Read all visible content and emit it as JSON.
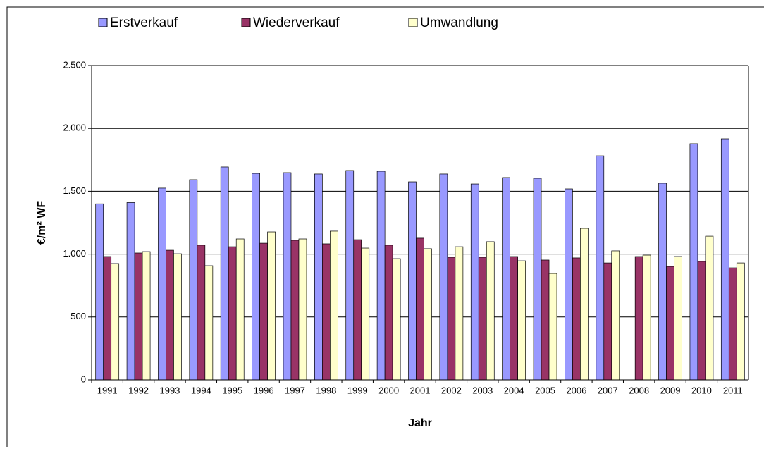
{
  "chart_data": {
    "type": "bar",
    "x_label": "Jahr",
    "y_label": "€/m² WF",
    "categories": [
      "1991",
      "1992",
      "1993",
      "1994",
      "1995",
      "1996",
      "1997",
      "1998",
      "1999",
      "2000",
      "2001",
      "2002",
      "2003",
      "2004",
      "2005",
      "2006",
      "2007",
      "2008",
      "2009",
      "2010",
      "2011"
    ],
    "series": [
      {
        "name": "Erstverkauf",
        "color": "#9999ff",
        "values": [
          1400,
          1410,
          1525,
          1592,
          1693,
          1642,
          1648,
          1637,
          1665,
          1659,
          1575,
          1637,
          1558,
          1609,
          1603,
          1519,
          1782,
          null,
          1564,
          1878,
          1917
        ]
      },
      {
        "name": "Wiederverkauf",
        "color": "#993366",
        "values": [
          981,
          1009,
          1031,
          1071,
          1059,
          1087,
          1110,
          1082,
          1115,
          1071,
          1127,
          975,
          975,
          981,
          953,
          970,
          930,
          981,
          902,
          942,
          891
        ]
      },
      {
        "name": "Umwandlung",
        "color": "#ffffcc",
        "values": [
          925,
          1020,
          1003,
          908,
          1121,
          1177,
          1121,
          1183,
          1048,
          964,
          1043,
          1059,
          1099,
          947,
          846,
          1205,
          1026,
          992,
          981,
          1143,
          930
        ]
      }
    ],
    "ylim": [
      0,
      2500
    ],
    "yticks": [
      0,
      500,
      {
        "value": 1000,
        "label": "1.000"
      },
      {
        "value": 1500,
        "label": "1.500"
      },
      {
        "value": 2000,
        "label": "2.000"
      },
      {
        "value": 2500,
        "label": "2.500"
      }
    ],
    "grid": true,
    "legend": "top"
  }
}
